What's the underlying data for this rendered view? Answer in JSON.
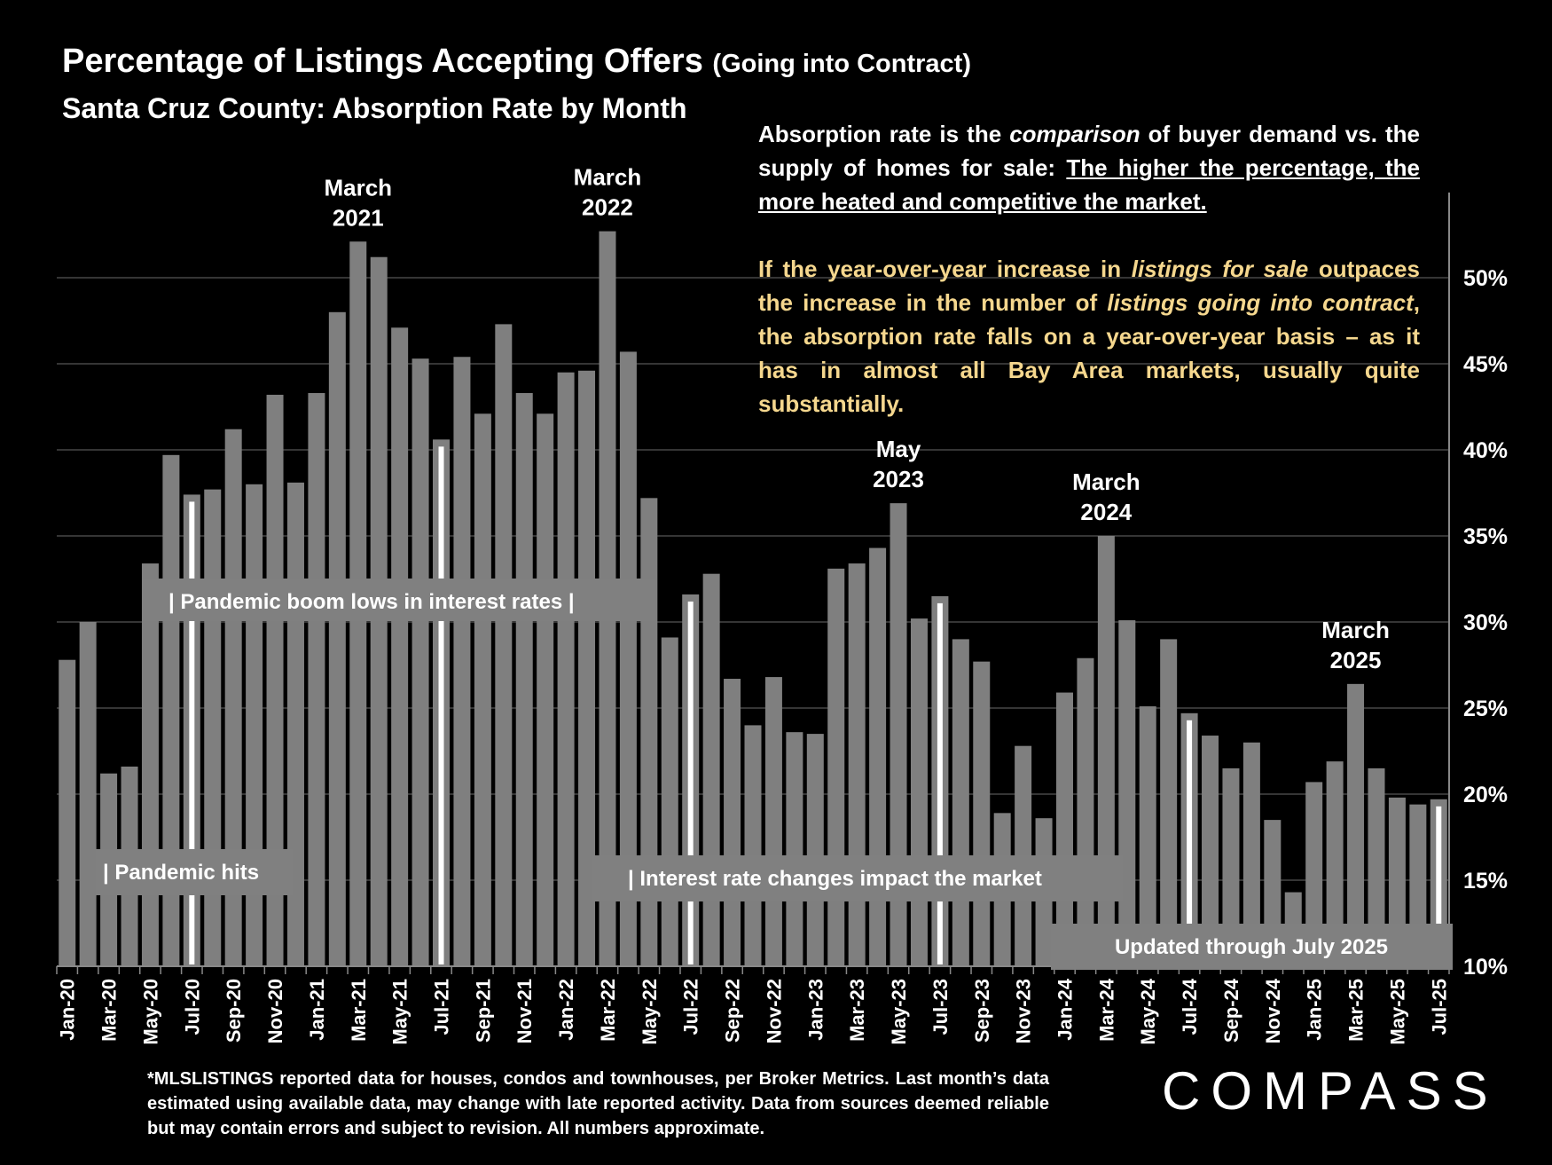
{
  "header": {
    "title": "Percentage of Listings Accepting Offers",
    "title_suffix": "(Going into Contract)",
    "subtitle": "Santa Cruz County:  Absorption Rate by Month"
  },
  "description": {
    "p1_a": "Absorption rate is the ",
    "p1_em": "comparison",
    "p1_b": " of buyer demand vs. the supply of homes for sale: ",
    "p1_u": "The higher the percentage, the more heated and competitive the market.",
    "p2_a": "If the year-over-year increase in ",
    "p2_em1": "listings for sale",
    "p2_b": " outpaces the increase in the number of ",
    "p2_em2": "listings going into contract",
    "p2_c": ", the absorption rate falls on a year-over-year basis – as it has in almost all Bay Area markets, usually quite substantially."
  },
  "footnote": "*MLSLISTINGS reported data for houses, condos and townhouses, per Broker Metrics. Last month’s data estimated using available data, may change with late reported activity. Data from sources deemed reliable but may contain errors and subject to revision. All numbers approximate.",
  "logo": "COMPASS",
  "colors": {
    "bar": "#7f7f7f",
    "background": "#000000",
    "accent_text": "#f5d78e",
    "marker": "#ffffff"
  },
  "chart_data": {
    "type": "bar",
    "ylabel_format": "percent",
    "ylim": [
      10,
      55
    ],
    "yticks": [
      10,
      15,
      20,
      25,
      30,
      35,
      40,
      45,
      50
    ],
    "ytick_labels": [
      "10%",
      "15%",
      "20%",
      "25%",
      "30%",
      "35%",
      "40%",
      "45%",
      "50%"
    ],
    "grid": true,
    "categories": [
      "Jan-20",
      "Feb-20",
      "Mar-20",
      "Apr-20",
      "May-20",
      "Jun-20",
      "Jul-20",
      "Aug-20",
      "Sep-20",
      "Oct-20",
      "Nov-20",
      "Dec-20",
      "Jan-21",
      "Feb-21",
      "Mar-21",
      "Apr-21",
      "May-21",
      "Jun-21",
      "Jul-21",
      "Aug-21",
      "Sep-21",
      "Oct-21",
      "Nov-21",
      "Dec-21",
      "Jan-22",
      "Feb-22",
      "Mar-22",
      "Apr-22",
      "May-22",
      "Jun-22",
      "Jul-22",
      "Aug-22",
      "Sep-22",
      "Oct-22",
      "Nov-22",
      "Dec-22",
      "Jan-23",
      "Feb-23",
      "Mar-23",
      "Apr-23",
      "May-23",
      "Jun-23",
      "Jul-23",
      "Aug-23",
      "Sep-23",
      "Oct-23",
      "Nov-23",
      "Dec-23",
      "Jan-24",
      "Feb-24",
      "Mar-24",
      "Apr-24",
      "May-24",
      "Jun-24",
      "Jul-24",
      "Aug-24",
      "Sep-24",
      "Oct-24",
      "Nov-24",
      "Dec-24",
      "Jan-25",
      "Feb-25",
      "Mar-25",
      "Apr-25",
      "May-25",
      "Jun-25",
      "Jul-25"
    ],
    "tick_labels": [
      "Jan-20",
      "Mar-20",
      "May-20",
      "Jul-20",
      "Sep-20",
      "Nov-20",
      "Jan-21",
      "Mar-21",
      "May-21",
      "Jul-21",
      "Sep-21",
      "Nov-21",
      "Jan-22",
      "Mar-22",
      "May-22",
      "Jul-22",
      "Sep-22",
      "Nov-22",
      "Jan-23",
      "Mar-23",
      "May-23",
      "Jul-23",
      "Sep-23",
      "Nov-23",
      "Jan-24",
      "Mar-24",
      "May-24",
      "Jul-24",
      "Sep-24",
      "Nov-24",
      "Jan-25",
      "Mar-25",
      "May-25",
      "Jul-25"
    ],
    "values": [
      27.8,
      30.0,
      21.2,
      21.6,
      33.4,
      39.7,
      37.4,
      37.7,
      41.2,
      38.0,
      43.2,
      38.1,
      43.3,
      48.0,
      52.1,
      51.2,
      47.1,
      45.3,
      40.6,
      45.4,
      42.1,
      47.3,
      43.3,
      42.1,
      44.5,
      44.6,
      52.7,
      45.7,
      37.2,
      29.1,
      31.6,
      32.8,
      26.7,
      24.0,
      26.8,
      23.6,
      23.5,
      33.1,
      33.4,
      34.3,
      36.9,
      30.2,
      31.5,
      29.0,
      27.7,
      18.9,
      22.8,
      18.6,
      25.9,
      27.9,
      35.0,
      30.1,
      25.1,
      29.0,
      24.7,
      23.4,
      21.5,
      23.0,
      18.5,
      14.3,
      20.7,
      21.9,
      26.4,
      21.5,
      19.8,
      19.4,
      19.7
    ],
    "peak_labels": [
      {
        "index": 14,
        "line1": "March",
        "line2": "2021"
      },
      {
        "index": 26,
        "line1": "March",
        "line2": "2022"
      },
      {
        "index": 40,
        "line1": "May",
        "line2": "2023"
      },
      {
        "index": 50,
        "line1": "March",
        "line2": "2024"
      },
      {
        "index": 62,
        "line1": "March",
        "line2": "2025"
      }
    ],
    "july_marker_indices": [
      6,
      18,
      30,
      42,
      54,
      66
    ],
    "annotations": {
      "pandemic_hits": "|  Pandemic hits",
      "pandemic_boom": "|  Pandemic boom lows in interest rates  |",
      "interest_rate": "|  Interest rate changes impact the market",
      "updated": "Updated through July 2025"
    }
  }
}
